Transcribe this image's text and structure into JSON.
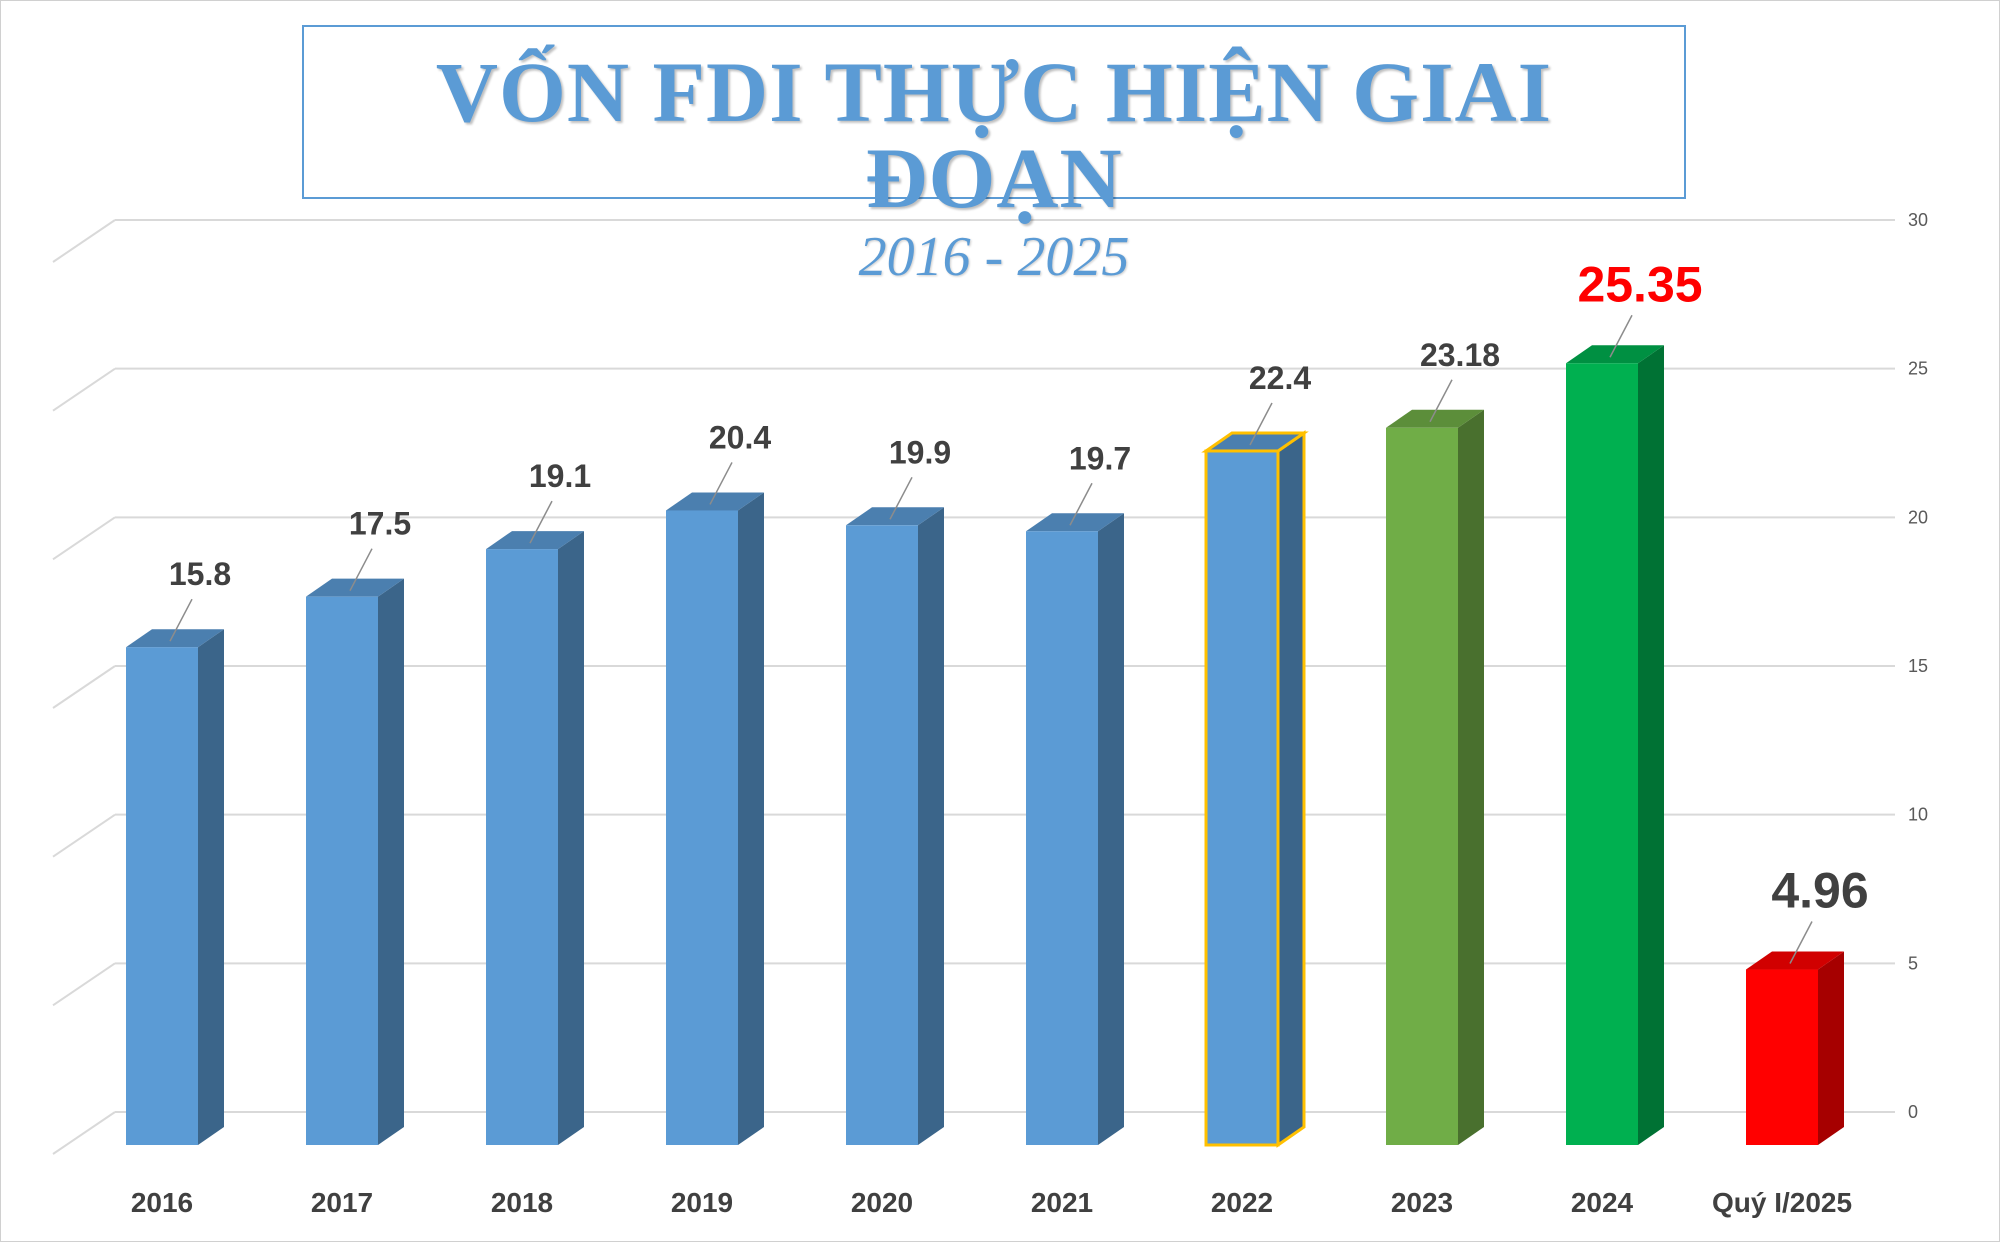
{
  "title": "VỐN FDI THỰC HIỆN GIAI ĐOẠN",
  "subtitle": "2016 - 2025",
  "chart_data": {
    "type": "bar",
    "title": "VỐN FDI THỰC HIỆN GIAI ĐOẠN",
    "subtitle": "2016 - 2025",
    "categories": [
      "2016",
      "2017",
      "2018",
      "2019",
      "2020",
      "2021",
      "2022",
      "2023",
      "2024",
      "Quý I/2025"
    ],
    "values": [
      15.8,
      17.5,
      19.1,
      20.4,
      19.9,
      19.7,
      22.4,
      23.18,
      25.35,
      4.96
    ],
    "data_labels": [
      "15.8",
      "17.5",
      "19.1",
      "20.4",
      "19.9",
      "19.7",
      "22.4",
      "23.18",
      "25.35",
      "4.96"
    ],
    "bar_colors": [
      "#5b9bd5",
      "#5b9bd5",
      "#5b9bd5",
      "#5b9bd5",
      "#5b9bd5",
      "#5b9bd5",
      "#5b9bd5",
      "#70ad47",
      "#00b050",
      "#ff0000"
    ],
    "highlight_outline": {
      "2022": "#ffc000"
    },
    "label_colors": {
      "2024": "#ff0000"
    },
    "yticks": [
      "0",
      "5",
      "10",
      "15",
      "20",
      "25",
      "30"
    ],
    "ylim": [
      0,
      30
    ],
    "y_axis_position": "right",
    "grid": true,
    "style": "3d-column",
    "xlabel": "",
    "ylabel": ""
  }
}
